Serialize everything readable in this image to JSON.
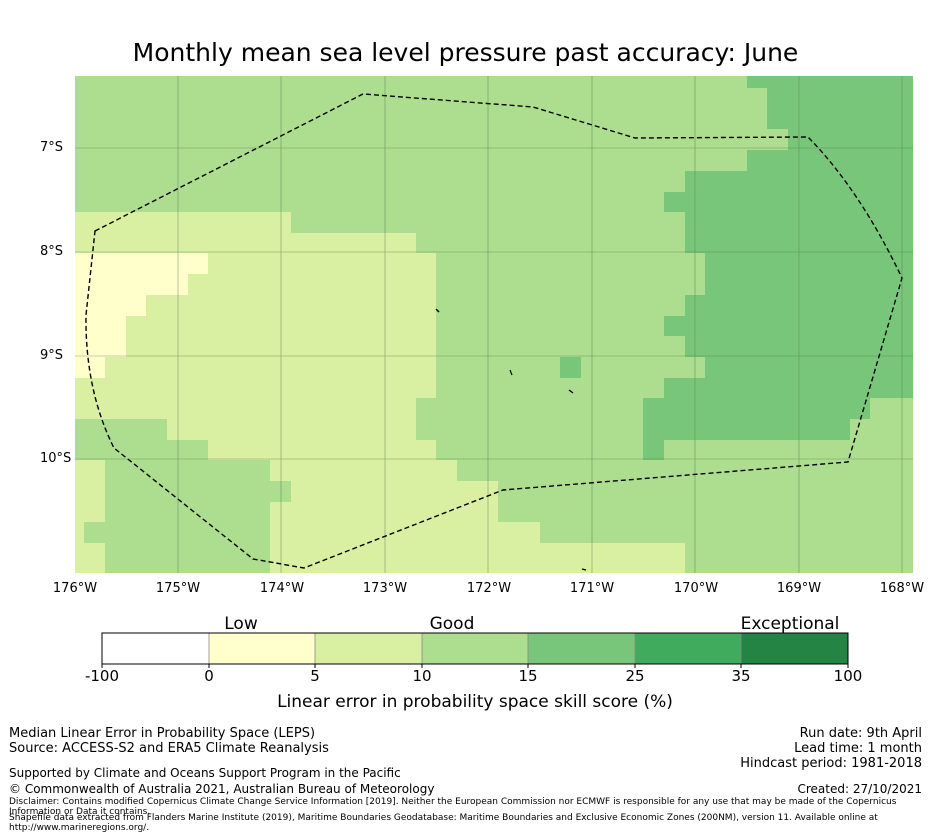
{
  "title": "Monthly mean sea level pressure past accuracy: June",
  "map": {
    "lat_ticks": [
      "7°S",
      "8°S",
      "9°S",
      "10°S"
    ],
    "lon_ticks": [
      "176°W",
      "175°W",
      "174°W",
      "173°W",
      "172°W",
      "171°W",
      "170°W",
      "169°W",
      "168°W"
    ],
    "bands": [
      {
        "range": "-100 to 0",
        "color": "#ffffff"
      },
      {
        "range": "0 to 5",
        "color": "#ffffcc"
      },
      {
        "range": "5 to 10",
        "color": "#d9f0a3"
      },
      {
        "range": "10 to 15",
        "color": "#addd8e"
      },
      {
        "range": "15 to 25",
        "color": "#78c679"
      },
      {
        "range": "25 to 35",
        "color": "#41ab5d"
      },
      {
        "range": "35 to 100",
        "color": "#238443"
      }
    ],
    "boundary": "dashed"
  },
  "colorbar": {
    "categories": [
      "Low",
      "Good",
      "Exceptional"
    ],
    "ticks": [
      "-100",
      "0",
      "5",
      "10",
      "15",
      "25",
      "35",
      "100"
    ],
    "colors": [
      "#ffffff",
      "#ffffcc",
      "#d9f0a3",
      "#addd8e",
      "#78c679",
      "#41ab5d",
      "#238443"
    ],
    "label": "Linear error in probability space skill score (%)"
  },
  "info": {
    "line1": "Median Linear Error in Probability Space (LEPS)",
    "line2": "Source: ACCESS-S2 and ERA5 Climate Reanalysis",
    "run_date": "Run date: 9th April",
    "lead_time": "Lead time: 1 month",
    "hindcast": "Hindcast period: 1981-2018",
    "supported": "Supported by Climate and Oceans Support Program in the Pacific",
    "copyright": "© Commonwealth of Australia 2021, Australian Bureau of Meteorology",
    "created": "Created: 27/10/2021",
    "disclaimer": "Disclaimer: Contains modified Copernicus Climate Change Service Information [2019]. Neither the European Commission nor ECMWF is responsible for any use that may be made of the Copernicus Information or Data it contains.",
    "shapefile": "Shapefile data extracted from Flanders Marine Institute (2019), Maritime Boundaries Geodatabase: Maritime Boundaries and Exclusive Economic Zones (200NM), version 11. Available online at http://www.marineregions.org/."
  }
}
